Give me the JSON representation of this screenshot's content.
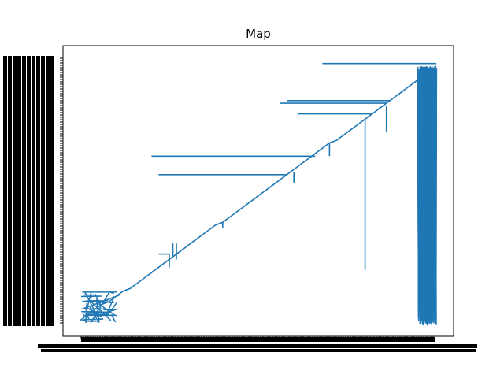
{
  "chart_data": {
    "type": "line",
    "title": "Map",
    "xlabel": "",
    "ylabel": "",
    "grid": false,
    "legend": "none",
    "line_color": "#1f77b4",
    "axis_color": "#000000",
    "x_tick_labels_legible": false,
    "y_tick_labels_legible": false,
    "xlim": [
      0,
      100
    ],
    "ylim": [
      0,
      100
    ],
    "series": [
      {
        "values": [
          [
            0,
            1
          ],
          [
            2,
            3
          ],
          [
            4,
            5
          ],
          [
            6,
            7
          ],
          [
            8,
            8
          ],
          [
            10,
            10
          ],
          [
            12,
            12
          ],
          [
            14,
            13
          ],
          [
            16,
            15
          ],
          [
            18,
            17
          ],
          [
            20,
            19
          ],
          [
            22,
            21
          ],
          [
            24,
            23
          ],
          [
            26,
            25
          ],
          [
            28,
            27
          ],
          [
            30,
            29
          ],
          [
            32,
            31
          ],
          [
            34,
            33
          ],
          [
            36,
            35
          ],
          [
            38,
            37
          ],
          [
            40,
            38
          ],
          [
            42,
            40
          ],
          [
            44,
            42
          ],
          [
            46,
            44
          ],
          [
            48,
            46
          ],
          [
            50,
            48
          ],
          [
            52,
            50
          ],
          [
            54,
            52
          ],
          [
            56,
            54
          ],
          [
            58,
            56
          ],
          [
            60,
            58
          ],
          [
            62,
            60
          ],
          [
            64,
            62
          ],
          [
            66,
            64
          ],
          [
            68,
            66
          ],
          [
            70,
            68
          ],
          [
            72,
            69
          ],
          [
            74,
            71
          ],
          [
            76,
            73
          ],
          [
            78,
            75
          ],
          [
            80,
            77
          ],
          [
            82,
            79
          ],
          [
            84,
            81
          ],
          [
            86,
            83
          ],
          [
            88,
            85
          ],
          [
            90,
            87
          ],
          [
            92,
            89
          ],
          [
            94,
            91
          ],
          [
            96,
            93
          ],
          [
            98,
            95
          ],
          [
            100,
            97
          ]
        ]
      }
    ],
    "spurs": [
      {
        "x": 22,
        "y": 26,
        "to_x": 25,
        "to_y": 26
      },
      {
        "x": 25,
        "y": 26,
        "to_x": 25,
        "to_y": 21
      },
      {
        "x": 26,
        "y": 30,
        "to_x": 26,
        "to_y": 25
      },
      {
        "x": 27,
        "y": 30,
        "to_x": 27,
        "to_y": 24
      },
      {
        "x": 40,
        "y": 38,
        "to_x": 40,
        "to_y": 36
      },
      {
        "x": 60,
        "y": 57,
        "to_x": 60,
        "to_y": 53
      },
      {
        "x": 58,
        "y": 56,
        "to_x": 22,
        "to_y": 56
      },
      {
        "x": 66,
        "y": 63,
        "to_x": 20,
        "to_y": 63
      },
      {
        "x": 70,
        "y": 68,
        "to_x": 70,
        "to_y": 63
      },
      {
        "x": 80,
        "y": 77,
        "to_x": 80,
        "to_y": 20
      },
      {
        "x": 82,
        "y": 79,
        "to_x": 61,
        "to_y": 79
      },
      {
        "x": 86,
        "y": 83,
        "to_x": 56,
        "to_y": 83
      },
      {
        "x": 87,
        "y": 84,
        "to_x": 58,
        "to_y": 84
      },
      {
        "x": 86,
        "y": 82,
        "to_x": 86,
        "to_y": 72
      },
      {
        "x": 100,
        "y": 98,
        "to_x": 68,
        "to_y": 98
      }
    ],
    "dense_regions": [
      {
        "x_range": [
          0,
          11
        ],
        "y_range": [
          0,
          12
        ],
        "segments": 46
      },
      {
        "x_range": [
          95,
          100
        ],
        "y_range": [
          -1,
          97
        ],
        "segments": 120
      }
    ]
  }
}
